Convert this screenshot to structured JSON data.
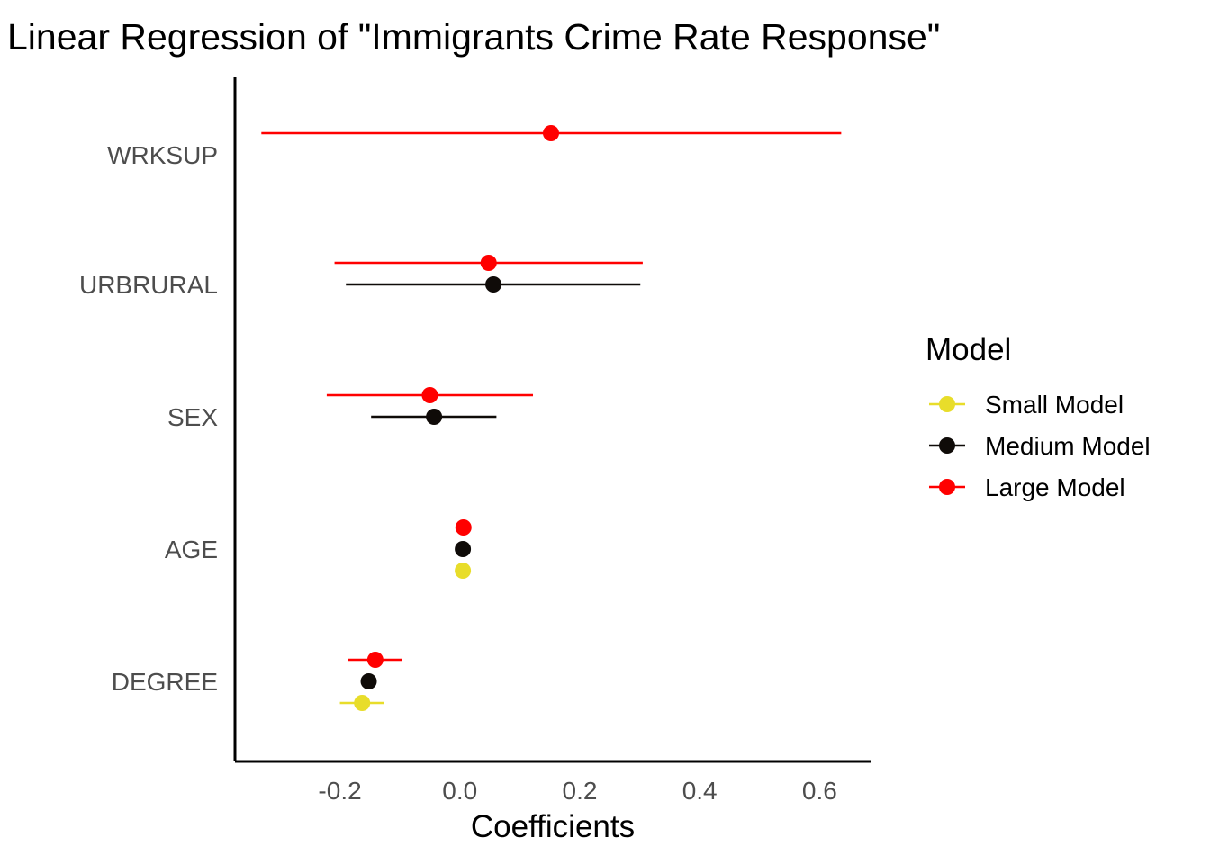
{
  "chart_data": {
    "type": "scatter",
    "subtype": "coefficient-plot",
    "title": "Linear Regression of \"Immigrants Crime Rate Response\"",
    "xlabel": "Coefficients",
    "ylabel": "",
    "xlim": [
      -0.375,
      0.685
    ],
    "x_ticks": [
      -0.2,
      0.0,
      0.2,
      0.4,
      0.6
    ],
    "x_tick_labels": [
      "-0.2",
      "0.0",
      "0.2",
      "0.4",
      "0.6"
    ],
    "categories": [
      "DEGREE",
      "AGE",
      "SEX",
      "URBRURAL",
      "WRKSUP"
    ],
    "grid": false,
    "legend": {
      "title": "Model",
      "placement": "right"
    },
    "series": [
      {
        "name": "Small Model",
        "color": "#E8DD2A",
        "points": [
          {
            "category": "DEGREE",
            "estimate": -0.163,
            "low": -0.2,
            "high": -0.126
          },
          {
            "category": "AGE",
            "estimate": 0.005,
            "low": 0.005,
            "high": 0.005
          }
        ]
      },
      {
        "name": "Medium Model",
        "color": "#0F0B08",
        "points": [
          {
            "category": "DEGREE",
            "estimate": -0.152,
            "low": -0.152,
            "high": -0.152
          },
          {
            "category": "AGE",
            "estimate": 0.005,
            "low": 0.005,
            "high": 0.005
          },
          {
            "category": "SEX",
            "estimate": -0.043,
            "low": -0.148,
            "high": 0.061
          },
          {
            "category": "URBRURAL",
            "estimate": 0.056,
            "low": -0.19,
            "high": 0.301
          }
        ]
      },
      {
        "name": "Large Model",
        "color": "#FF0000",
        "points": [
          {
            "category": "DEGREE",
            "estimate": -0.141,
            "low": -0.187,
            "high": -0.096
          },
          {
            "category": "AGE",
            "estimate": 0.006,
            "low": 0.006,
            "high": 0.006
          },
          {
            "category": "SEX",
            "estimate": -0.05,
            "low": -0.222,
            "high": 0.122
          },
          {
            "category": "URBRURAL",
            "estimate": 0.048,
            "low": -0.209,
            "high": 0.305
          },
          {
            "category": "WRKSUP",
            "estimate": 0.152,
            "low": -0.331,
            "high": 0.636
          }
        ]
      }
    ]
  }
}
